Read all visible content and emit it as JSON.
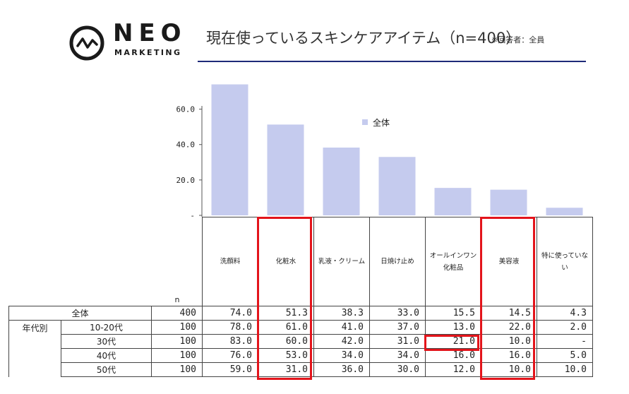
{
  "brand": {
    "name": "NEO",
    "sub": "MARKETING"
  },
  "header": {
    "title": "現在使っているスキンケアアイテム（n=400）",
    "note": "※回答者：全員"
  },
  "colors": {
    "bar": "#c5cbee",
    "highlight": "#e3141b",
    "rule": "#1e2a78"
  },
  "chart_data": {
    "type": "bar",
    "categories": [
      "洗顔料",
      "化粧水",
      "乳液・クリーム",
      "日焼け止め",
      "オールインワン化粧品",
      "美容液",
      "特に使っていない"
    ],
    "series": [
      {
        "name": "全体",
        "values": [
          74.0,
          51.3,
          38.3,
          33.0,
          15.5,
          14.5,
          4.3
        ]
      }
    ],
    "yticks": [
      "-",
      "20.0",
      "40.0",
      "60.0"
    ],
    "ylim": [
      0,
      75
    ],
    "legend_position": "top-right",
    "grid": false
  },
  "table": {
    "n_label": "n",
    "headers": [
      "洗顔料",
      "化粧水",
      "乳液・クリーム",
      "日焼け止め",
      "オールインワン\n化粧品",
      "美容液",
      "特に使っていな\nい"
    ],
    "group_label": "年代別",
    "rows": [
      {
        "label": "全体",
        "n": "400",
        "values": [
          "74.0",
          "51.3",
          "38.3",
          "33.0",
          "15.5",
          "14.5",
          "4.3"
        ]
      },
      {
        "label": "10-20代",
        "n": "100",
        "values": [
          "78.0",
          "61.0",
          "41.0",
          "37.0",
          "13.0",
          "22.0",
          "2.0"
        ]
      },
      {
        "label": "30代",
        "n": "100",
        "values": [
          "83.0",
          "60.0",
          "42.0",
          "31.0",
          "21.0",
          "10.0",
          "-"
        ]
      },
      {
        "label": "40代",
        "n": "100",
        "values": [
          "76.0",
          "53.0",
          "34.0",
          "34.0",
          "16.0",
          "16.0",
          "5.0"
        ]
      },
      {
        "label": "50代",
        "n": "100",
        "values": [
          "59.0",
          "31.0",
          "36.0",
          "30.0",
          "12.0",
          "10.0",
          "10.0"
        ]
      }
    ]
  }
}
